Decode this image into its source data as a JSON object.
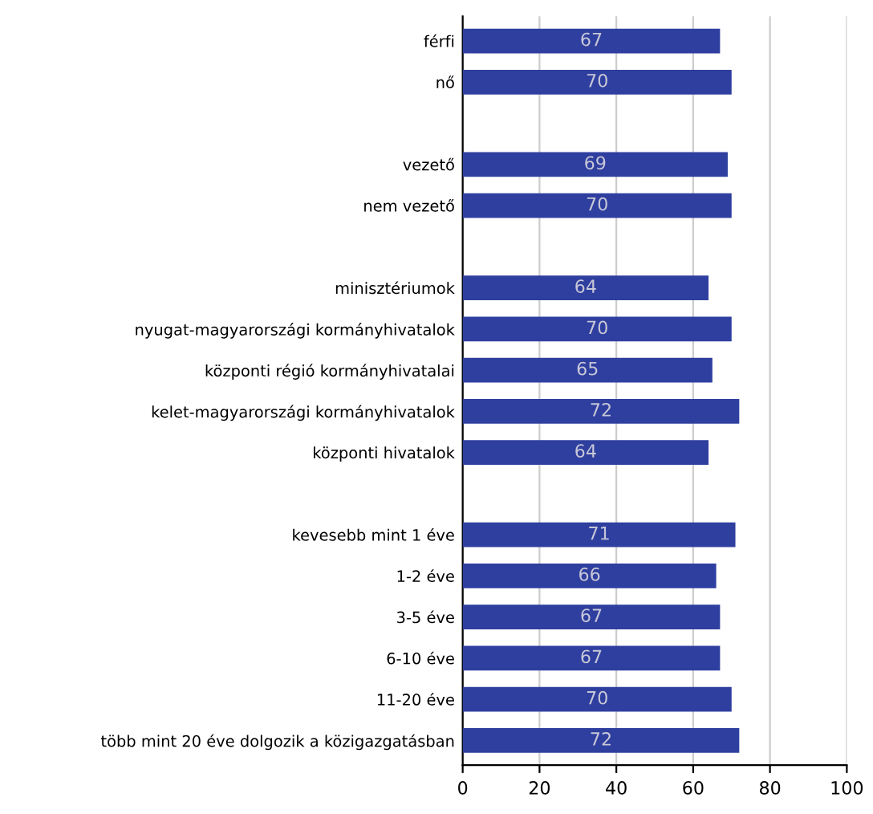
{
  "chart_data": {
    "type": "bar",
    "orientation": "horizontal",
    "categories": [
      "férfi",
      "nő",
      null,
      "vezető",
      "nem vezető",
      null,
      "minisztériumok",
      "nyugat-magyarországi kormányhivatalok",
      "központi régió kormányhivatalai",
      "kelet-magyarországi kormányhivatalok",
      "központi hivatalok",
      null,
      "kevesebb mint 1 éve",
      "1-2 éve",
      "3-5 éve",
      "6-10 éve",
      "11-20 éve",
      "több mint 20 éve dolgozik a közigazgatásban"
    ],
    "values": [
      67,
      70,
      null,
      69,
      70,
      null,
      64,
      70,
      65,
      72,
      64,
      null,
      71,
      66,
      67,
      67,
      70,
      72
    ],
    "color": "#2f3f9f",
    "xlim": [
      0,
      100
    ],
    "xticks": [
      0,
      20,
      40,
      60,
      80,
      100
    ],
    "grid": "x",
    "data_labels": true
  }
}
